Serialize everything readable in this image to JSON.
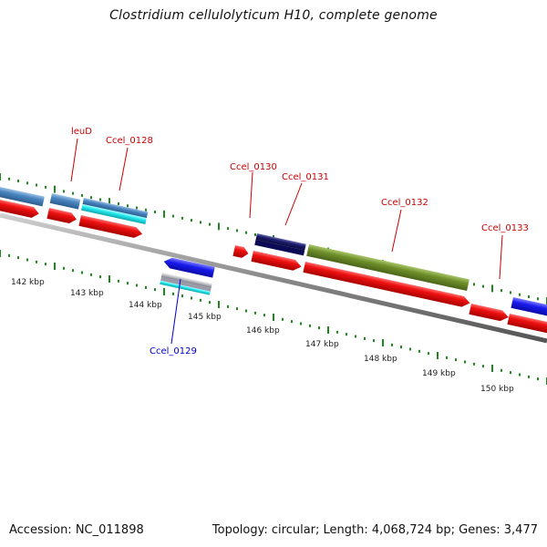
{
  "title": "Clostridium cellulolyticum H10, complete genome",
  "footer": {
    "accession": "Accession: NC_011898",
    "stats": "Topology: circular; Length: 4,068,724 bp; Genes: 3,477"
  },
  "kbp_ticks": [
    "142 kbp",
    "143 kbp",
    "144 kbp",
    "145 kbp",
    "146 kbp",
    "147 kbp",
    "148 kbp",
    "149 kbp",
    "150 kbp"
  ],
  "gene_labels": [
    {
      "name": "leuD",
      "color": "#cc0000"
    },
    {
      "name": "Ccel_0128",
      "color": "#cc0000"
    },
    {
      "name": "Ccel_0130",
      "color": "#cc0000"
    },
    {
      "name": "Ccel_0131",
      "color": "#cc0000"
    },
    {
      "name": "Ccel_0132",
      "color": "#cc0000"
    },
    {
      "name": "Ccel_0133",
      "color": "#cc0000"
    },
    {
      "name": "Ccel_0129",
      "color": "#0000cc"
    }
  ],
  "colors": {
    "cds_red": "#ee1111",
    "steel_blue": "#4a85bf",
    "cyan": "#22e8ee",
    "navy": "#1c1c6e",
    "olive": "#6f8f2a",
    "blue": "#1a1aee",
    "backbone": "#8a8a8a",
    "tick_green": "#1e8a1e"
  }
}
